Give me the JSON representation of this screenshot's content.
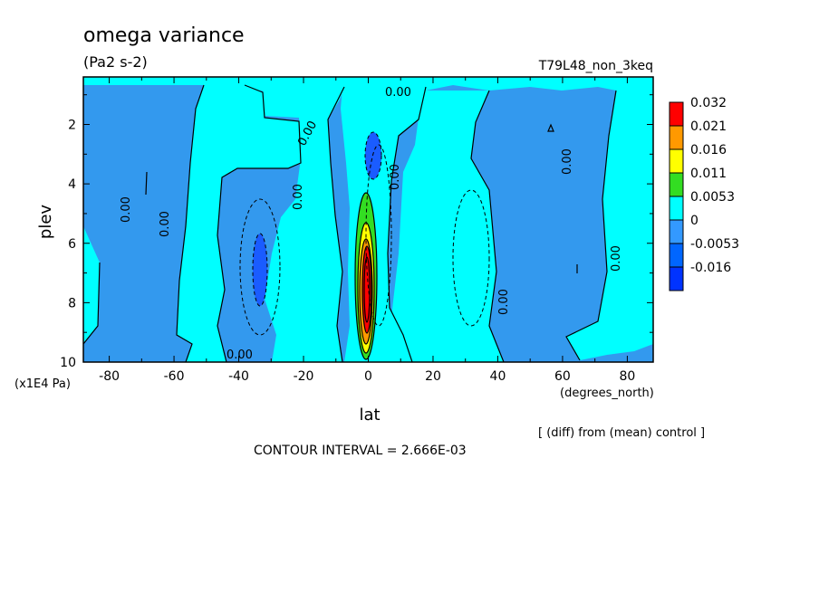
{
  "chart_data": {
    "type": "heatmap",
    "title": "omega variance",
    "units": "(Pa2 s-2)",
    "run_label": "T79L48_non_3keq",
    "xlabel": "lat",
    "x_units": "(degrees_north)",
    "ylabel": "plev",
    "y_units": "(x1E4 Pa)",
    "xlim": [
      -88,
      88
    ],
    "ylim": [
      0.4,
      10
    ],
    "x_ticks": [
      -80,
      -60,
      -40,
      -20,
      0,
      20,
      40,
      60,
      80
    ],
    "y_ticks": [
      2,
      4,
      6,
      8,
      10
    ],
    "note": "[ (diff) from (mean) control ]",
    "contour_interval_text": "CONTOUR INTERVAL = 2.666E-03",
    "contour_label": "0.00",
    "colorbar": {
      "labels": [
        "0.032",
        "0.021",
        "0.016",
        "0.011",
        "0.0053",
        "0",
        "-0.0053",
        "-0.016"
      ],
      "colors": [
        "#ff0000",
        "#ff9900",
        "#ffff00",
        "#33dd22",
        "#00ffff",
        "#3399ff",
        "#0066ff",
        "#0033ff"
      ]
    },
    "field_colors": {
      "negative_weak": "#3399ee",
      "zero_band": "#00ffff",
      "negative_strong": "#1a5cff",
      "positive_1": "#33dd22",
      "positive_2": "#ffff00",
      "positive_3": "#ff9900",
      "positive_4": "#ff0000"
    },
    "features": [
      {
        "name": "equatorial positive tower",
        "lat": 0,
        "plev_range": [
          4.2,
          9.6
        ],
        "max": 0.032
      },
      {
        "name": "equatorial upper minimum",
        "lat": 2,
        "plev_range": [
          2.0,
          4.0
        ],
        "min": -0.016
      },
      {
        "name": "southern subtropical minimum",
        "lat": -34,
        "plev_range": [
          5.6,
          8.0
        ],
        "min": -0.016
      }
    ]
  }
}
